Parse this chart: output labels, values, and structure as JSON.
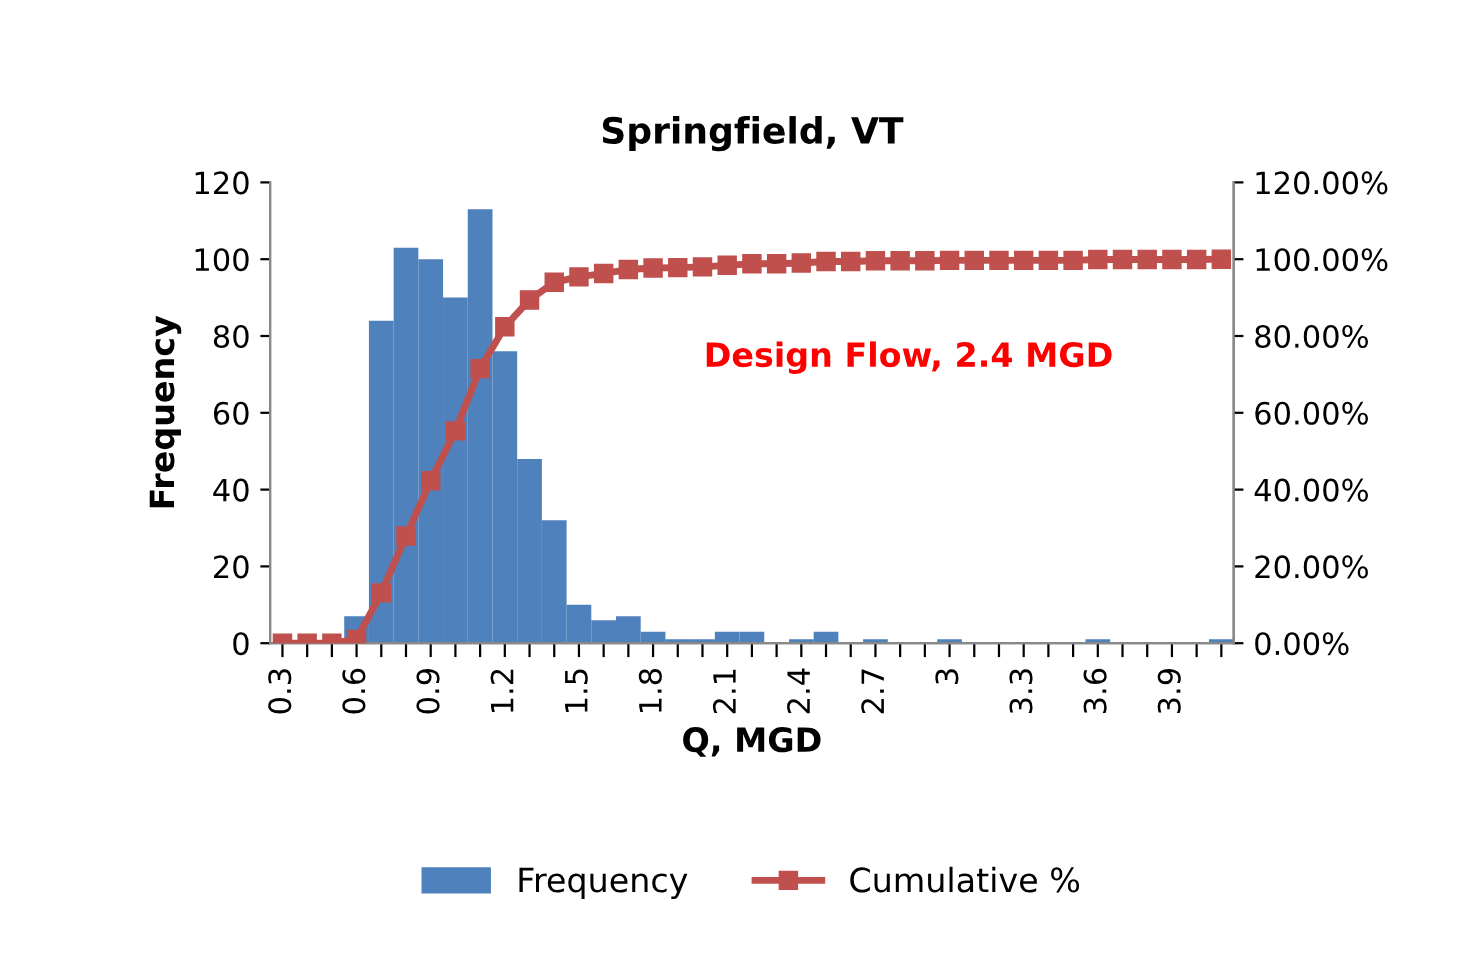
{
  "chart_data": {
    "type": "bar",
    "title": "Springfield, VT",
    "xlabel": "Q, MGD",
    "ylabel": "Frequency",
    "categories": [
      "0.3",
      null,
      null,
      "0.6",
      null,
      null,
      "0.9",
      null,
      null,
      "1.2",
      null,
      null,
      "1.5",
      null,
      null,
      "1.8",
      null,
      null,
      "2.1",
      null,
      null,
      "2.4",
      null,
      null,
      "2.7",
      null,
      null,
      "3",
      null,
      null,
      "3.3",
      null,
      null,
      "3.6",
      null,
      null,
      "3.9",
      null,
      null
    ],
    "series": [
      {
        "name": "Frequency",
        "color": "#4f81bd",
        "values": [
          0,
          0,
          0,
          7,
          84,
          103,
          100,
          90,
          113,
          76,
          48,
          32,
          10,
          6,
          7,
          3,
          1,
          1,
          3,
          3,
          0,
          1,
          3,
          0,
          1,
          0,
          0,
          1,
          0,
          0,
          0,
          0,
          0,
          1,
          0,
          0,
          0,
          0,
          1
        ]
      },
      {
        "name": "Cumulative %",
        "type": "line",
        "axis": "y2",
        "color": "#c0504d",
        "marker": "square",
        "values": [
          0,
          0,
          0,
          1.0,
          13.1,
          27.9,
          42.3,
          55.3,
          71.5,
          82.4,
          89.4,
          94.0,
          95.4,
          96.3,
          97.3,
          97.7,
          97.8,
          98.0,
          98.4,
          98.8,
          98.8,
          99.0,
          99.4,
          99.4,
          99.6,
          99.6,
          99.6,
          99.7,
          99.7,
          99.7,
          99.7,
          99.7,
          99.7,
          99.9,
          99.9,
          99.9,
          99.9,
          99.9,
          100
        ]
      }
    ],
    "ylim": [
      0,
      120
    ],
    "yticks": [
      0,
      20,
      40,
      60,
      80,
      100,
      120
    ],
    "y2lim": [
      0,
      120
    ],
    "y2ticks": [
      {
        "value": 0,
        "label": "0.00%"
      },
      {
        "value": 20,
        "label": "20.00%"
      },
      {
        "value": 40,
        "label": "40.00%"
      },
      {
        "value": 60,
        "label": "60.00%"
      },
      {
        "value": 80,
        "label": "80.00%"
      },
      {
        "value": 100,
        "label": "100.00%"
      },
      {
        "value": 120,
        "label": "120.00%"
      }
    ],
    "annotations": [
      "Design Flow, 2.4 MGD"
    ],
    "legend": "bottom",
    "grid": false
  }
}
